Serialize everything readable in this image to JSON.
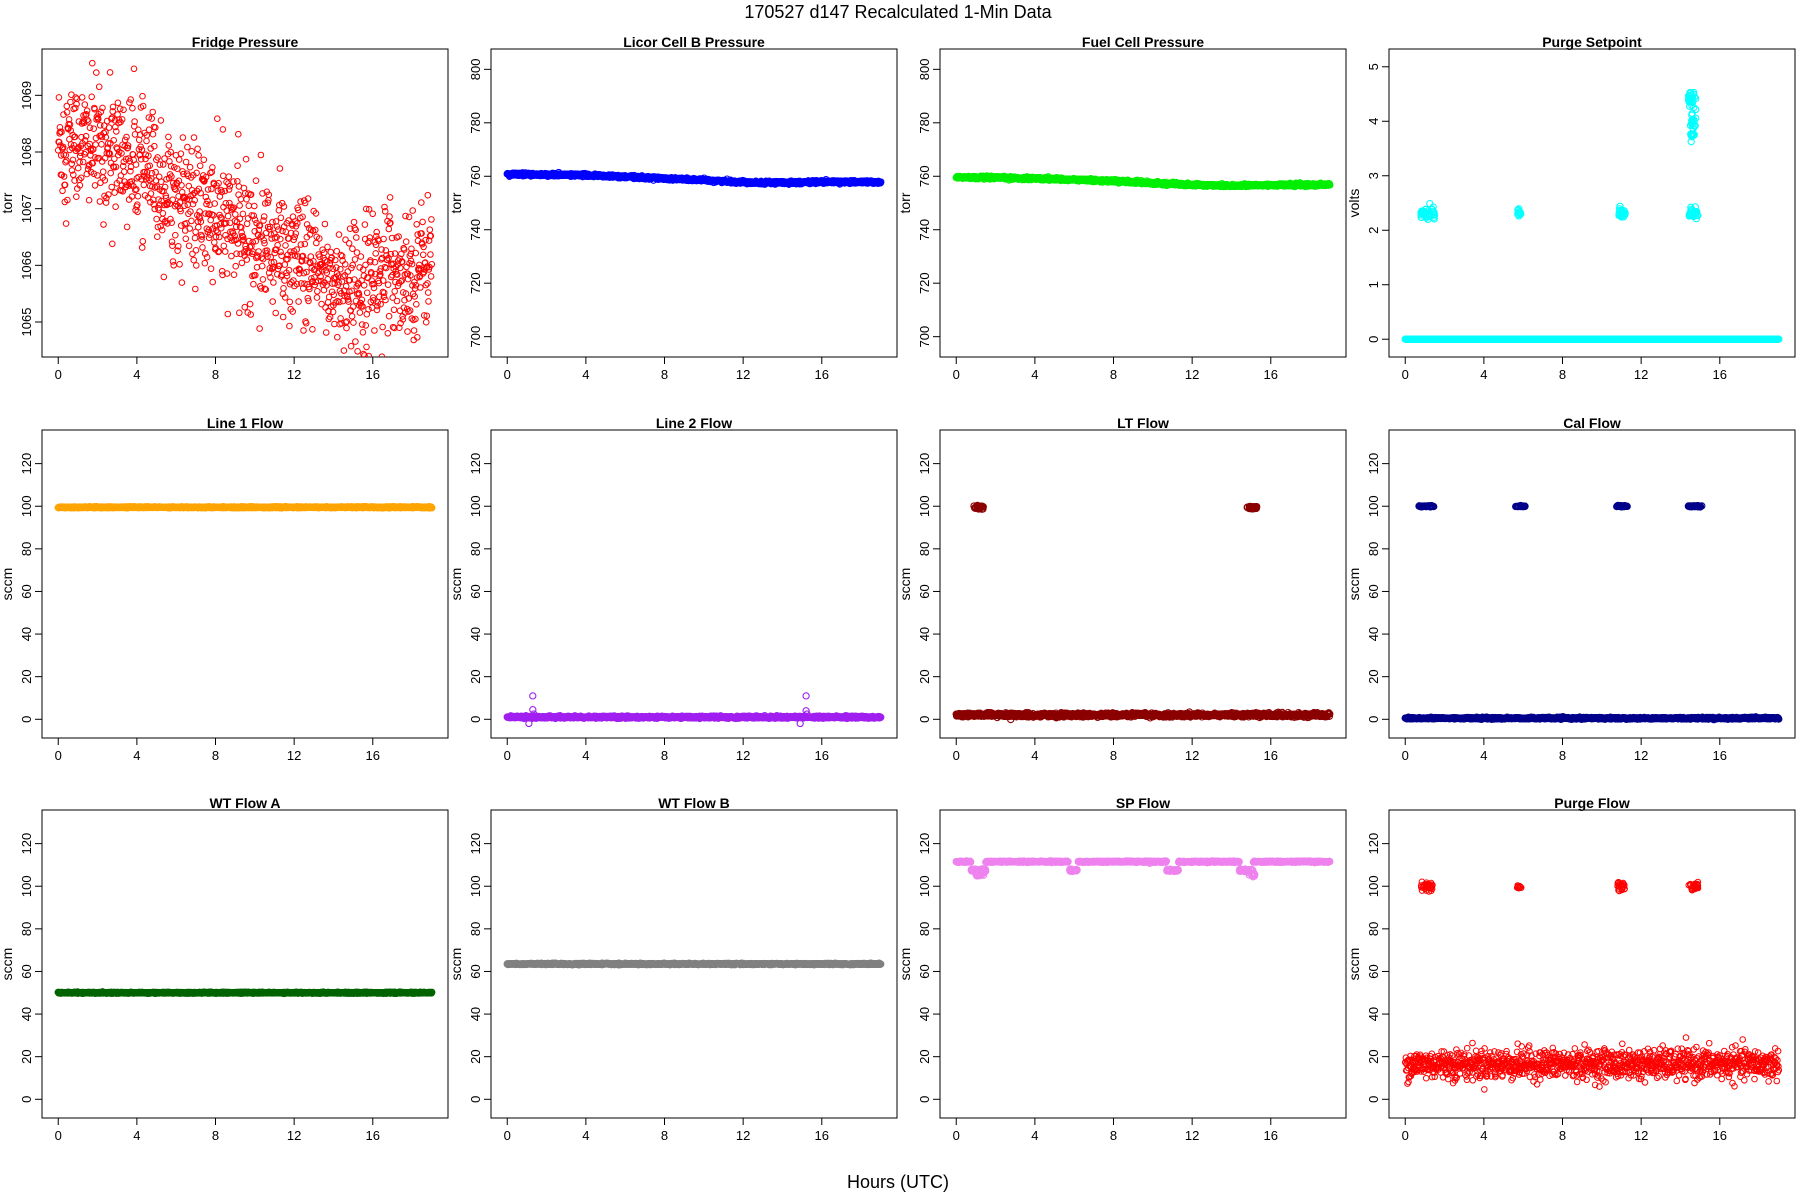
{
  "figure": {
    "title": "170527   d147   Recalculated 1-Min Data",
    "xlabel": "Hours (UTC)"
  },
  "chart_data": [
    {
      "type": "scatter",
      "title": "Fridge Pressure",
      "ylabel": "torr",
      "color": "#ff0000",
      "xlim": [
        0,
        19
      ],
      "ylim": [
        1064.6,
        1069.6
      ],
      "xticks": [
        0,
        4,
        8,
        12,
        16
      ],
      "yticks": [
        1065,
        1066,
        1067,
        1068,
        1069
      ],
      "series": [
        {
          "values": [
            [
              0,
              1068.2
            ],
            [
              0.5,
              1068.0
            ],
            [
              1,
              1068.1
            ],
            [
              1.3,
              1069.2
            ],
            [
              1.6,
              1066.8
            ],
            [
              2,
              1068.3
            ],
            [
              3,
              1068.0
            ],
            [
              4,
              1067.8
            ],
            [
              5,
              1067.6
            ],
            [
              6,
              1067.1
            ],
            [
              7,
              1066.9
            ],
            [
              8,
              1066.8
            ],
            [
              9,
              1066.6
            ],
            [
              10,
              1066.5
            ],
            [
              11,
              1066.4
            ],
            [
              12,
              1066.1
            ],
            [
              13,
              1065.8
            ],
            [
              14,
              1065.6
            ],
            [
              15,
              1065.2
            ],
            [
              16,
              1065.9
            ],
            [
              17,
              1065.9
            ],
            [
              18,
              1065.8
            ],
            [
              19,
              1066.2
            ]
          ]
        }
      ],
      "trend": [
        [
          0,
          1068.2
        ],
        [
          2,
          1068.1
        ],
        [
          4,
          1067.8
        ],
        [
          6,
          1067.2
        ],
        [
          8,
          1066.8
        ],
        [
          10,
          1066.5
        ],
        [
          12,
          1066.1
        ],
        [
          14,
          1065.7
        ],
        [
          15,
          1065.6
        ],
        [
          16,
          1065.9
        ],
        [
          18,
          1065.9
        ],
        [
          19,
          1066.1
        ]
      ],
      "noise": 0.55,
      "marker": "ring",
      "n": 1140
    },
    {
      "type": "scatter",
      "title": "Licor Cell B Pressure",
      "ylabel": "torr",
      "color": "#0000ff",
      "xlim": [
        0,
        19
      ],
      "ylim": [
        697,
        803
      ],
      "xticks": [
        0,
        4,
        8,
        12,
        16
      ],
      "yticks": [
        700,
        720,
        740,
        760,
        780,
        800
      ],
      "series": [
        {
          "values": [
            [
              0,
              760.8
            ],
            [
              4,
              760.4
            ],
            [
              8,
              759.2
            ],
            [
              12,
              757.8
            ],
            [
              16,
              757.9
            ],
            [
              19,
              757.8
            ]
          ]
        }
      ],
      "trend": [
        [
          0,
          760.8
        ],
        [
          4,
          760.4
        ],
        [
          8,
          759.2
        ],
        [
          12,
          757.8
        ],
        [
          14,
          757.6
        ],
        [
          16,
          757.9
        ],
        [
          19,
          757.8
        ]
      ],
      "noise": 0.25,
      "marker": "dense",
      "n": 1140
    },
    {
      "type": "scatter",
      "title": "Fuel Cell Pressure",
      "ylabel": "torr",
      "color": "#00ee00",
      "xlim": [
        0,
        19
      ],
      "ylim": [
        697,
        803
      ],
      "xticks": [
        0,
        4,
        8,
        12,
        16
      ],
      "yticks": [
        700,
        720,
        740,
        760,
        780,
        800
      ],
      "series": [
        {
          "values": [
            [
              0,
              759.6
            ],
            [
              4,
              759.2
            ],
            [
              8,
              758.2
            ],
            [
              12,
              756.8
            ],
            [
              16,
              756.7
            ],
            [
              19,
              756.9
            ]
          ]
        }
      ],
      "trend": [
        [
          0,
          759.6
        ],
        [
          4,
          759.2
        ],
        [
          8,
          758.2
        ],
        [
          12,
          756.8
        ],
        [
          14,
          756.5
        ],
        [
          16,
          756.7
        ],
        [
          19,
          756.9
        ]
      ],
      "noise": 0.25,
      "marker": "dense",
      "n": 1140
    },
    {
      "type": "scatter",
      "title": "Purge Setpoint",
      "ylabel": "volts",
      "color": "#00ffff",
      "xlim": [
        0,
        19
      ],
      "ylim": [
        -0.1,
        5.1
      ],
      "xticks": [
        0,
        4,
        8,
        12,
        16
      ],
      "yticks": [
        0,
        1,
        2,
        3,
        4,
        5
      ],
      "series": [
        {
          "values": [
            [
              0,
              0
            ],
            [
              19,
              0
            ],
            [
              0.9,
              2.3
            ],
            [
              1.2,
              2.35
            ],
            [
              5.8,
              2.32
            ],
            [
              11,
              2.3
            ],
            [
              14.6,
              2.3
            ],
            [
              14.5,
              4.45
            ],
            [
              14.7,
              4.1
            ],
            [
              14.6,
              3.75
            ]
          ]
        }
      ],
      "trend": [
        [
          0,
          0.0
        ],
        [
          19,
          0.0
        ]
      ],
      "noise": 0.0,
      "marker": "dense",
      "n": 1140,
      "clusters": [
        [
          0.8,
          1.5,
          2.3,
          0.05
        ],
        [
          5.7,
          5.9,
          2.32,
          0.04
        ],
        [
          10.8,
          11.2,
          2.32,
          0.05
        ],
        [
          14.4,
          14.9,
          2.3,
          0.05
        ],
        [
          14.4,
          14.8,
          4.4,
          0.08
        ],
        [
          14.5,
          14.8,
          4.0,
          0.12
        ],
        [
          14.5,
          14.7,
          3.75,
          0.02
        ]
      ]
    },
    {
      "type": "scatter",
      "title": "Line 1 Flow",
      "ylabel": "sccm",
      "color": "#ffa500",
      "xlim": [
        0,
        19
      ],
      "ylim": [
        -3,
        130
      ],
      "xticks": [
        0,
        4,
        8,
        12,
        16
      ],
      "yticks": [
        0,
        20,
        40,
        60,
        80,
        100,
        120
      ],
      "series": [
        {
          "values": [
            [
              0,
              99.5
            ],
            [
              19,
              99.5
            ]
          ]
        }
      ],
      "trend": [
        [
          0,
          99.5
        ],
        [
          19,
          99.5
        ]
      ],
      "noise": 0.12,
      "marker": "dense",
      "n": 1140
    },
    {
      "type": "scatter",
      "title": "Line 2 Flow",
      "ylabel": "sccm",
      "color": "#a020f0",
      "xlim": [
        0,
        19
      ],
      "ylim": [
        -3,
        130
      ],
      "xticks": [
        0,
        4,
        8,
        12,
        16
      ],
      "yticks": [
        0,
        20,
        40,
        60,
        80,
        100,
        120
      ],
      "series": [
        {
          "values": [
            [
              0,
              1
            ],
            [
              19,
              1
            ],
            [
              1.3,
              11
            ],
            [
              1.3,
              4.5
            ],
            [
              1.1,
              -2
            ],
            [
              15.2,
              11
            ],
            [
              15.2,
              4
            ],
            [
              14.9,
              -2
            ]
          ]
        }
      ],
      "trend": [
        [
          0,
          1.0
        ],
        [
          19,
          1.0
        ]
      ],
      "noise": 0.25,
      "marker": "dense",
      "n": 1140,
      "outliers": [
        [
          1.3,
          11
        ],
        [
          1.3,
          4.5
        ],
        [
          1.35,
          2.5
        ],
        [
          1.1,
          -2
        ],
        [
          15.2,
          11
        ],
        [
          15.2,
          4
        ],
        [
          15.25,
          2.5
        ],
        [
          14.9,
          -2
        ]
      ]
    },
    {
      "type": "scatter",
      "title": "LT Flow",
      "ylabel": "sccm",
      "color": "#8b0000",
      "xlim": [
        0,
        19
      ],
      "ylim": [
        -3,
        130
      ],
      "xticks": [
        0,
        4,
        8,
        12,
        16
      ],
      "yticks": [
        0,
        20,
        40,
        60,
        80,
        100,
        120
      ],
      "series": [
        {
          "values": [
            [
              0,
              2
            ],
            [
              19,
              2
            ],
            [
              1.1,
              99.5
            ],
            [
              15,
              99.5
            ]
          ]
        }
      ],
      "trend": [
        [
          0,
          2.0
        ],
        [
          19,
          2.0
        ]
      ],
      "noise": 0.45,
      "marker": "dense",
      "n": 1140,
      "clusters": [
        [
          0.9,
          1.4,
          99.5,
          0.5
        ],
        [
          14.8,
          15.3,
          99.5,
          0.5
        ]
      ]
    },
    {
      "type": "scatter",
      "title": "Cal Flow",
      "ylabel": "sccm",
      "color": "#00008b",
      "xlim": [
        0,
        19
      ],
      "ylim": [
        -3,
        130
      ],
      "xticks": [
        0,
        4,
        8,
        12,
        16
      ],
      "yticks": [
        0,
        20,
        40,
        60,
        80,
        100,
        120
      ],
      "series": [
        {
          "values": [
            [
              0,
              0.5
            ],
            [
              19,
              0.5
            ],
            [
              1.1,
              100
            ],
            [
              5.8,
              100
            ],
            [
              11,
              100
            ],
            [
              14.8,
              100
            ]
          ]
        }
      ],
      "trend": [
        [
          0,
          0.5
        ],
        [
          19,
          0.5
        ]
      ],
      "noise": 0.2,
      "marker": "dense",
      "n": 1140,
      "clusters": [
        [
          0.7,
          1.5,
          100,
          0.15
        ],
        [
          5.6,
          6.1,
          100,
          0.15
        ],
        [
          10.7,
          11.3,
          100,
          0.15
        ],
        [
          14.4,
          15.1,
          100,
          0.15
        ]
      ]
    },
    {
      "type": "scatter",
      "title": "WT Flow A",
      "ylabel": "sccm",
      "color": "#006400",
      "xlim": [
        0,
        19
      ],
      "ylim": [
        -3,
        130
      ],
      "xticks": [
        0,
        4,
        8,
        12,
        16
      ],
      "yticks": [
        0,
        20,
        40,
        60,
        80,
        100,
        120
      ],
      "series": [
        {
          "values": [
            [
              0,
              50
            ],
            [
              19,
              50
            ]
          ]
        }
      ],
      "trend": [
        [
          0,
          50.0
        ],
        [
          19,
          50.0
        ]
      ],
      "noise": 0.12,
      "marker": "dense",
      "n": 1140
    },
    {
      "type": "scatter",
      "title": "WT Flow B",
      "ylabel": "sccm",
      "color": "#808080",
      "xlim": [
        0,
        19
      ],
      "ylim": [
        -3,
        130
      ],
      "xticks": [
        0,
        4,
        8,
        12,
        16
      ],
      "yticks": [
        0,
        20,
        40,
        60,
        80,
        100,
        120
      ],
      "series": [
        {
          "values": [
            [
              0,
              63.5
            ],
            [
              19,
              63.5
            ]
          ]
        }
      ],
      "trend": [
        [
          0,
          63.5
        ],
        [
          19,
          63.5
        ]
      ],
      "noise": 0.15,
      "marker": "dense",
      "n": 1140
    },
    {
      "type": "scatter",
      "title": "SP Flow",
      "ylabel": "sccm",
      "color": "#ee82ee",
      "xlim": [
        0,
        19
      ],
      "ylim": [
        -3,
        130
      ],
      "xticks": [
        0,
        4,
        8,
        12,
        16
      ],
      "yticks": [
        0,
        20,
        40,
        60,
        80,
        100,
        120
      ],
      "series": [
        {
          "values": [
            [
              0,
              111.5
            ],
            [
              19,
              111.5
            ],
            [
              1.1,
              107.5
            ],
            [
              6,
              107.5
            ],
            [
              11,
              107.5
            ],
            [
              14.8,
              107.5
            ]
          ]
        }
      ],
      "trend": [
        [
          0,
          111.5
        ],
        [
          19,
          111.5
        ]
      ],
      "noise": 0.15,
      "marker": "dense",
      "n": 1140,
      "gaps": [
        [
          0.75,
          1.5
        ],
        [
          5.7,
          6.2
        ],
        [
          10.7,
          11.3
        ],
        [
          14.4,
          15.1
        ]
      ],
      "clusters": [
        [
          0.75,
          1.5,
          107.5,
          0.3
        ],
        [
          1.0,
          1.4,
          105.5,
          0.5
        ],
        [
          5.7,
          6.2,
          107.5,
          0.3
        ],
        [
          10.7,
          11.3,
          107.5,
          0.3
        ],
        [
          14.4,
          15.1,
          107.5,
          0.3
        ],
        [
          14.9,
          15.2,
          105.5,
          0.4
        ]
      ]
    },
    {
      "type": "scatter",
      "title": "Purge Flow",
      "ylabel": "sccm",
      "color": "#ff0000",
      "xlim": [
        0,
        19
      ],
      "ylim": [
        -3,
        130
      ],
      "xticks": [
        0,
        4,
        8,
        12,
        16
      ],
      "yticks": [
        0,
        20,
        40,
        60,
        80,
        100,
        120
      ],
      "series": [
        {
          "values": [
            [
              0,
              15
            ],
            [
              19,
              15
            ],
            [
              1,
              100
            ],
            [
              5.8,
              100
            ],
            [
              11,
              100
            ],
            [
              14.6,
              100
            ]
          ]
        }
      ],
      "trend": [
        [
          0,
          16.5
        ],
        [
          19,
          16.5
        ]
      ],
      "noise": 3.5,
      "marker": "ring",
      "n": 1140,
      "clusters": [
        [
          0.8,
          1.4,
          100,
          1.2
        ],
        [
          5.7,
          5.9,
          99.5,
          0.5
        ],
        [
          10.8,
          11.2,
          100,
          1.2
        ],
        [
          14.4,
          14.9,
          100,
          1.0
        ]
      ]
    }
  ]
}
